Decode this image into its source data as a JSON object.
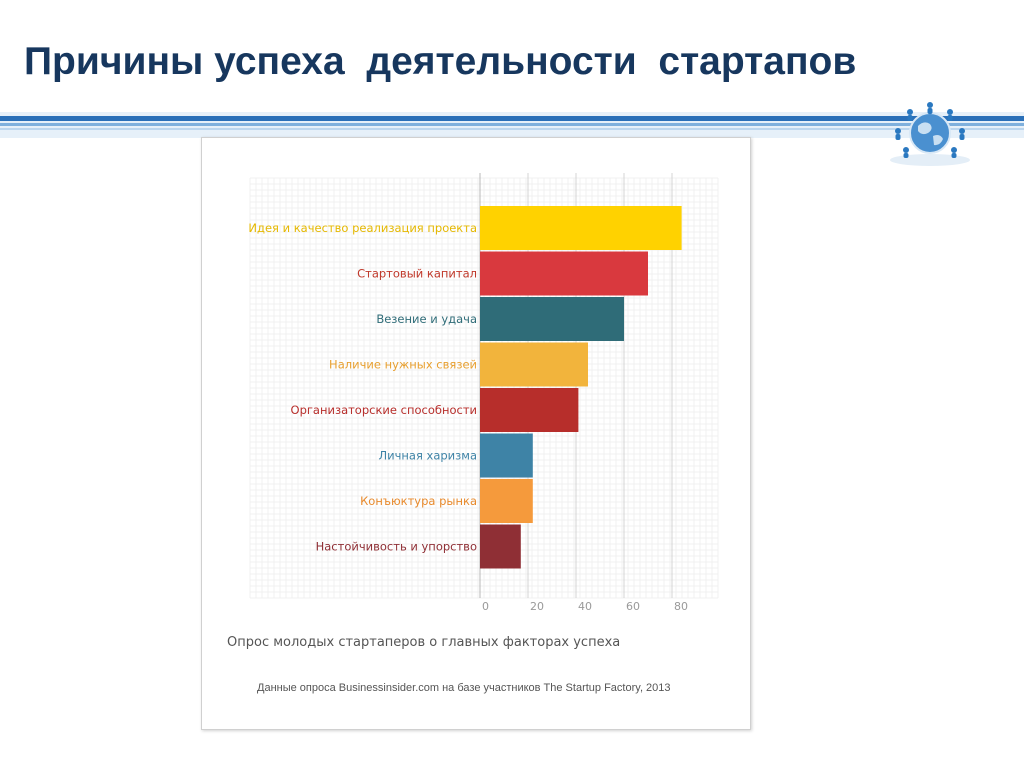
{
  "slide": {
    "title": "Причины успеха  деятельности  стартапов"
  },
  "colors": {
    "title": "#17375e",
    "band_blue": "#2a6fb8",
    "band_light": "#bcd6ee"
  },
  "icons": {
    "logo": "globe-people-icon"
  },
  "chart_data": {
    "type": "bar",
    "orientation": "horizontal",
    "categories": [
      "Идея и качество реализация проекта",
      "Стартовый капитал",
      "Везение и удача",
      "Наличие нужных связей",
      "Организаторские способности",
      "Личная харизма",
      "Конъюктура рынка",
      "Настойчивость и упорство"
    ],
    "values": [
      84,
      70,
      60,
      45,
      41,
      22,
      22,
      17
    ],
    "bar_colors": [
      "#ffd200",
      "#d9393e",
      "#2f6c78",
      "#f2b43c",
      "#b72e2b",
      "#3e83a6",
      "#f59a3c",
      "#8f2f35"
    ],
    "label_colors": [
      "#e5b800",
      "#c0392b",
      "#2f6c78",
      "#e8a030",
      "#b72e2b",
      "#3e83a6",
      "#e88a2c",
      "#8f2f35"
    ],
    "xticks": [
      0,
      20,
      40,
      60,
      80
    ],
    "xlim": [
      0,
      100
    ],
    "grid": true,
    "title": "Опрос молодых стартаперов о главных факторах успеха",
    "source": "Данные опроса Businessinsider.com на базе участников The Startup Factory, 2013"
  }
}
